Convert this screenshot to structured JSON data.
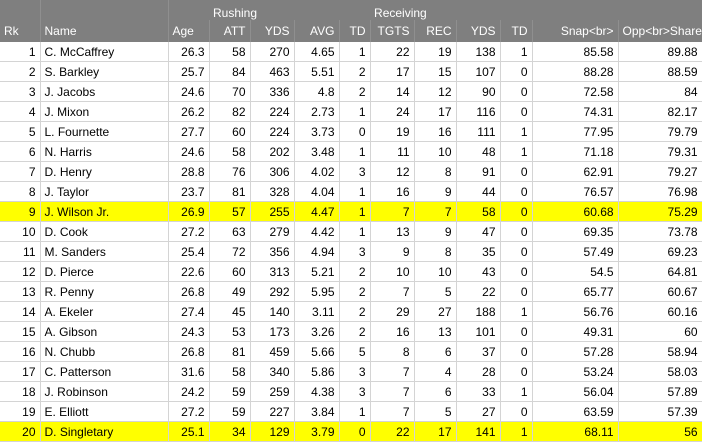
{
  "header": {
    "groups": {
      "rushing": "Rushing",
      "receiving": "Receiving"
    },
    "columns": [
      "Rk",
      "Name",
      "Age",
      "ATT",
      "YDS",
      "AVG",
      "TD",
      "TGTS",
      "REC",
      "YDS",
      "TD",
      "Snap<br>",
      "Opp<br>Share"
    ]
  },
  "highlight_color": "#ffff00",
  "rows": [
    [
      "1",
      "C. McCaffrey",
      "26.3",
      "58",
      "270",
      "4.65",
      "1",
      "22",
      "19",
      "138",
      "1",
      "85.58",
      "89.88"
    ],
    [
      "2",
      "S. Barkley",
      "25.7",
      "84",
      "463",
      "5.51",
      "2",
      "17",
      "15",
      "107",
      "0",
      "88.28",
      "88.59"
    ],
    [
      "3",
      "J. Jacobs",
      "24.6",
      "70",
      "336",
      "4.8",
      "2",
      "14",
      "12",
      "90",
      "0",
      "72.58",
      "84"
    ],
    [
      "4",
      "J. Mixon",
      "26.2",
      "82",
      "224",
      "2.73",
      "1",
      "24",
      "17",
      "116",
      "0",
      "74.31",
      "82.17"
    ],
    [
      "5",
      "L. Fournette",
      "27.7",
      "60",
      "224",
      "3.73",
      "0",
      "19",
      "16",
      "111",
      "1",
      "77.95",
      "79.79"
    ],
    [
      "6",
      "N. Harris",
      "24.6",
      "58",
      "202",
      "3.48",
      "1",
      "11",
      "10",
      "48",
      "1",
      "71.18",
      "79.31"
    ],
    [
      "7",
      "D. Henry",
      "28.8",
      "76",
      "306",
      "4.02",
      "3",
      "12",
      "8",
      "91",
      "0",
      "62.91",
      "79.27"
    ],
    [
      "8",
      "J. Taylor",
      "23.7",
      "81",
      "328",
      "4.04",
      "1",
      "16",
      "9",
      "44",
      "0",
      "76.57",
      "76.98"
    ],
    [
      "9",
      "J. Wilson Jr.",
      "26.9",
      "57",
      "255",
      "4.47",
      "1",
      "7",
      "7",
      "58",
      "0",
      "60.68",
      "75.29"
    ],
    [
      "10",
      "D. Cook",
      "27.2",
      "63",
      "279",
      "4.42",
      "1",
      "13",
      "9",
      "47",
      "0",
      "69.35",
      "73.78"
    ],
    [
      "11",
      "M. Sanders",
      "25.4",
      "72",
      "356",
      "4.94",
      "3",
      "9",
      "8",
      "35",
      "0",
      "57.49",
      "69.23"
    ],
    [
      "12",
      "D. Pierce",
      "22.6",
      "60",
      "313",
      "5.21",
      "2",
      "10",
      "10",
      "43",
      "0",
      "54.5",
      "64.81"
    ],
    [
      "13",
      "R. Penny",
      "26.8",
      "49",
      "292",
      "5.95",
      "2",
      "7",
      "5",
      "22",
      "0",
      "65.77",
      "60.67"
    ],
    [
      "14",
      "A. Ekeler",
      "27.4",
      "45",
      "140",
      "3.11",
      "2",
      "29",
      "27",
      "188",
      "1",
      "56.76",
      "60.16"
    ],
    [
      "15",
      "A. Gibson",
      "24.3",
      "53",
      "173",
      "3.26",
      "2",
      "16",
      "13",
      "101",
      "0",
      "49.31",
      "60"
    ],
    [
      "16",
      "N. Chubb",
      "26.8",
      "81",
      "459",
      "5.66",
      "5",
      "8",
      "6",
      "37",
      "0",
      "57.28",
      "58.94"
    ],
    [
      "17",
      "C. Patterson",
      "31.6",
      "58",
      "340",
      "5.86",
      "3",
      "7",
      "4",
      "28",
      "0",
      "53.24",
      "58.03"
    ],
    [
      "18",
      "J. Robinson",
      "24.2",
      "59",
      "259",
      "4.38",
      "3",
      "7",
      "6",
      "33",
      "1",
      "56.04",
      "57.89"
    ],
    [
      "19",
      "E. Elliott",
      "27.2",
      "59",
      "227",
      "3.84",
      "1",
      "7",
      "5",
      "27",
      "0",
      "63.59",
      "57.39"
    ],
    [
      "20",
      "D. Singletary",
      "25.1",
      "34",
      "129",
      "3.79",
      "0",
      "22",
      "17",
      "141",
      "1",
      "68.11",
      "56"
    ]
  ],
  "highlighted_ranks": [
    "9",
    "20"
  ]
}
